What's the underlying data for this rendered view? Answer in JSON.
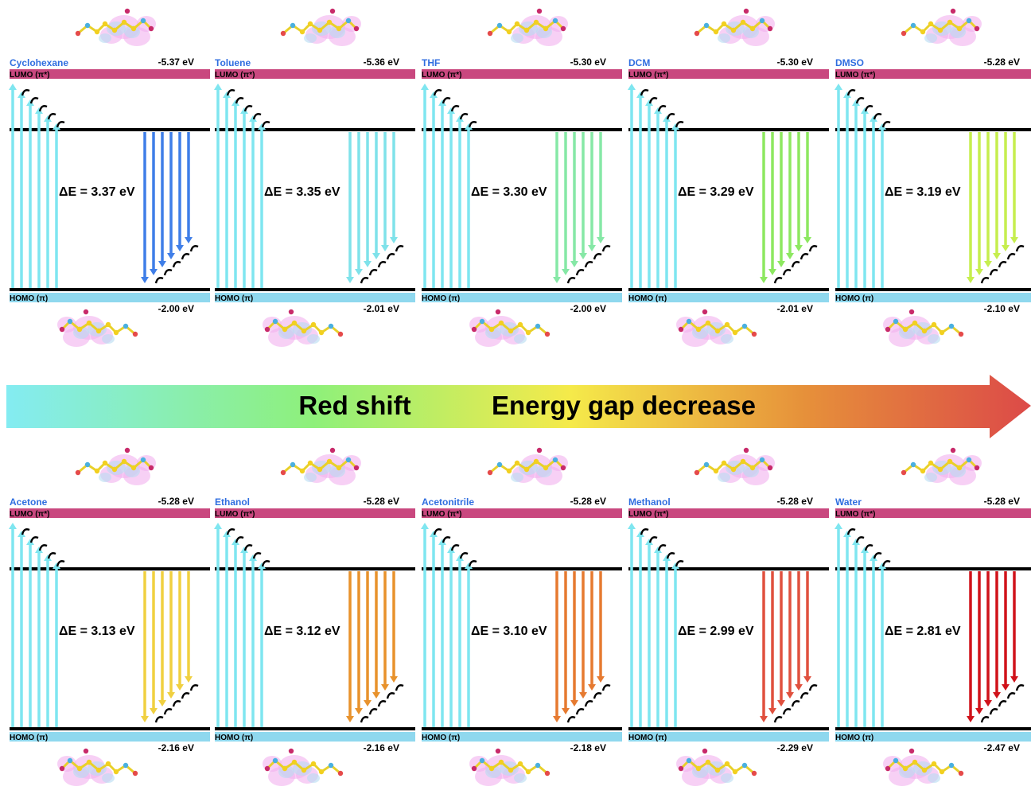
{
  "colors": {
    "lumo_bar": "#c9487f",
    "homo_bar": "#8fd8ee",
    "excitation_arrow": "#7fe6f0",
    "solvent_label": "#2f6ee0",
    "level_line": "#000000",
    "arrow_gradient_start": "#84ecf2",
    "arrow_gradient_mid1": "#8ef07a",
    "arrow_gradient_mid2": "#f5ea4a",
    "arrow_gradient_mid3": "#e6903a",
    "arrow_gradient_end": "#dc4a48"
  },
  "labels": {
    "lumo": "LUMO (π*)",
    "homo": "HOMO (π)"
  },
  "banner": {
    "left_text": "Red shift",
    "right_text": "Energy gap decrease"
  },
  "panels": [
    {
      "solvent": "Cyclohexane",
      "lumo_energy": "-5.37 eV",
      "homo_energy": "-2.00 eV",
      "gap_label": "ΔE = 3.37 eV",
      "gap_value": 3.37,
      "emission_color": "#3f7ee8"
    },
    {
      "solvent": "Toluene",
      "lumo_energy": "-5.36 eV",
      "homo_energy": "-2.01 eV",
      "gap_label": "ΔE = 3.35 eV",
      "gap_value": 3.35,
      "emission_color": "#7fe2ea"
    },
    {
      "solvent": "THF",
      "lumo_energy": "-5.30 eV",
      "homo_energy": "-2.00 eV",
      "gap_label": "ΔE = 3.30 eV",
      "gap_value": 3.3,
      "emission_color": "#86e8a6"
    },
    {
      "solvent": "DCM",
      "lumo_energy": "-5.30 eV",
      "homo_energy": "-2.01 eV",
      "gap_label": "ΔE = 3.29 eV",
      "gap_value": 3.29,
      "emission_color": "#8de860"
    },
    {
      "solvent": "DMSO",
      "lumo_energy": "-5.28 eV",
      "homo_energy": "-2.10 eV",
      "gap_label": "ΔE = 3.19 eV",
      "gap_value": 3.19,
      "emission_color": "#c6ee4e"
    },
    {
      "solvent": "Acetone",
      "lumo_energy": "-5.28 eV",
      "homo_energy": "-2.16 eV",
      "gap_label": "ΔE = 3.13 eV",
      "gap_value": 3.13,
      "emission_color": "#f0d040"
    },
    {
      "solvent": "Ethanol",
      "lumo_energy": "-5.28 eV",
      "homo_energy": "-2.16 eV",
      "gap_label": "ΔE = 3.12 eV",
      "gap_value": 3.12,
      "emission_color": "#e8922c"
    },
    {
      "solvent": "Acetonitrile",
      "lumo_energy": "-5.28 eV",
      "homo_energy": "-2.18 eV",
      "gap_label": "ΔE = 3.10 eV",
      "gap_value": 3.1,
      "emission_color": "#e67a30"
    },
    {
      "solvent": "Methanol",
      "lumo_energy": "-5.28 eV",
      "homo_energy": "-2.29 eV",
      "gap_label": "ΔE = 2.99 eV",
      "gap_value": 2.99,
      "emission_color": "#e0503e"
    },
    {
      "solvent": "Water",
      "lumo_energy": "-5.28 eV",
      "homo_energy": "-2.47 eV",
      "gap_label": "ΔE = 2.81 eV",
      "gap_value": 2.81,
      "emission_color": "#d0121a"
    }
  ]
}
